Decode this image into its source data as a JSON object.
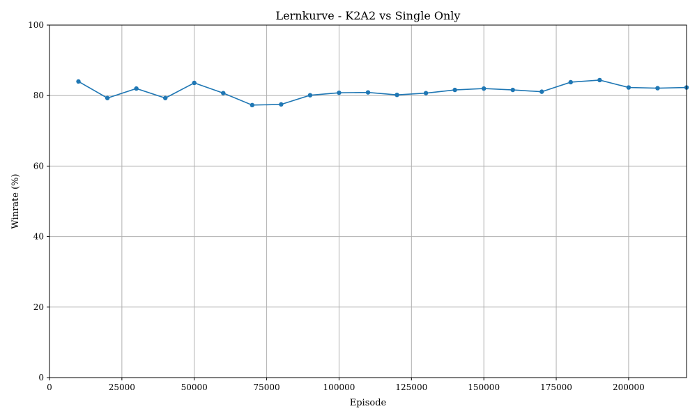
{
  "chart_data": {
    "type": "line",
    "title": "Lernkurve - K2A2 vs Single Only",
    "xlabel": "Episode",
    "ylabel": "Winrate (%)",
    "xlim": [
      0,
      220000
    ],
    "ylim": [
      0,
      100
    ],
    "xticks": [
      0,
      25000,
      50000,
      75000,
      100000,
      125000,
      150000,
      175000,
      200000
    ],
    "yticks": [
      0,
      20,
      40,
      60,
      80,
      100
    ],
    "grid": true,
    "line_color": "#1f77b4",
    "series": [
      {
        "x": [
          10000,
          20000,
          30000,
          40000,
          50000,
          60000,
          70000,
          80000,
          90000,
          100000,
          110000,
          120000,
          130000,
          140000,
          150000,
          160000,
          170000,
          180000,
          190000,
          200000,
          210000,
          220000
        ],
        "values": [
          84.0,
          79.3,
          82.0,
          79.3,
          83.6,
          80.7,
          77.3,
          77.5,
          80.1,
          80.8,
          80.9,
          80.2,
          80.7,
          81.6,
          82.0,
          81.6,
          81.1,
          83.8,
          84.4,
          82.3,
          82.1,
          82.3
        ]
      }
    ]
  }
}
